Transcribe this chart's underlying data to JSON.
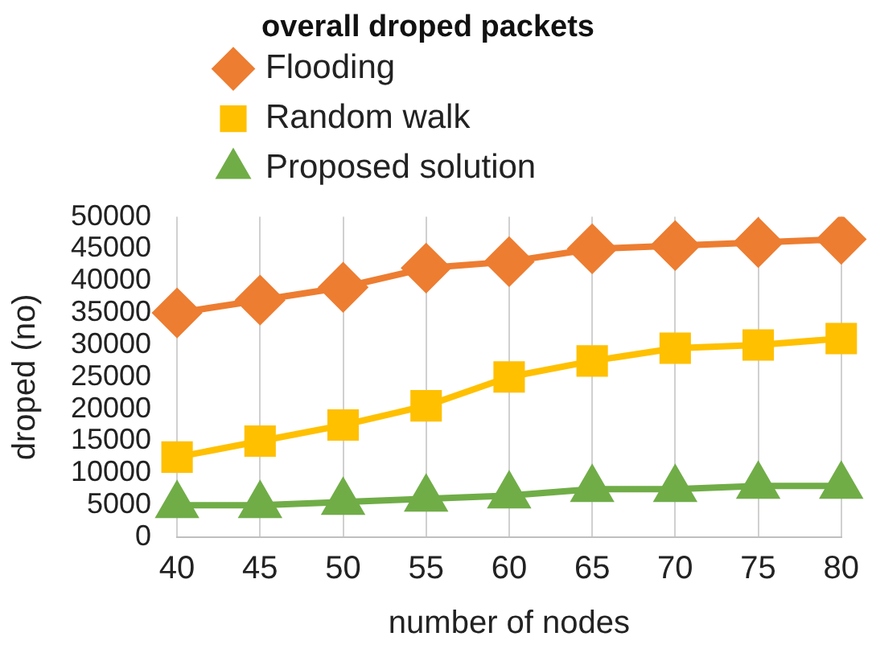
{
  "chart_data": {
    "type": "line",
    "title": "overall droped packets",
    "xlabel": "number of nodes",
    "ylabel": "droped (no)",
    "categories": [
      "40",
      "45",
      "50",
      "55",
      "60",
      "65",
      "70",
      "75",
      "80"
    ],
    "series": [
      {
        "name": "Flooding",
        "color": "#ed7d31",
        "marker": "diamond",
        "values": [
          35000,
          37000,
          39000,
          42000,
          43000,
          45000,
          45500,
          46000,
          46500
        ]
      },
      {
        "name": "Random walk",
        "color": "#ffc000",
        "marker": "square",
        "values": [
          12500,
          15000,
          17500,
          20500,
          25000,
          27500,
          29500,
          30000,
          31000
        ]
      },
      {
        "name": "Proposed solution",
        "color": "#70ad47",
        "marker": "triangle",
        "values": [
          5000,
          5000,
          5500,
          6000,
          6500,
          7500,
          7500,
          8000,
          8000
        ]
      }
    ],
    "ylim": [
      0,
      50000
    ],
    "yticks": [
      0,
      5000,
      10000,
      15000,
      20000,
      25000,
      30000,
      35000,
      40000,
      45000,
      50000
    ],
    "grid": "x",
    "legend": "top",
    "line_style": "solid"
  }
}
